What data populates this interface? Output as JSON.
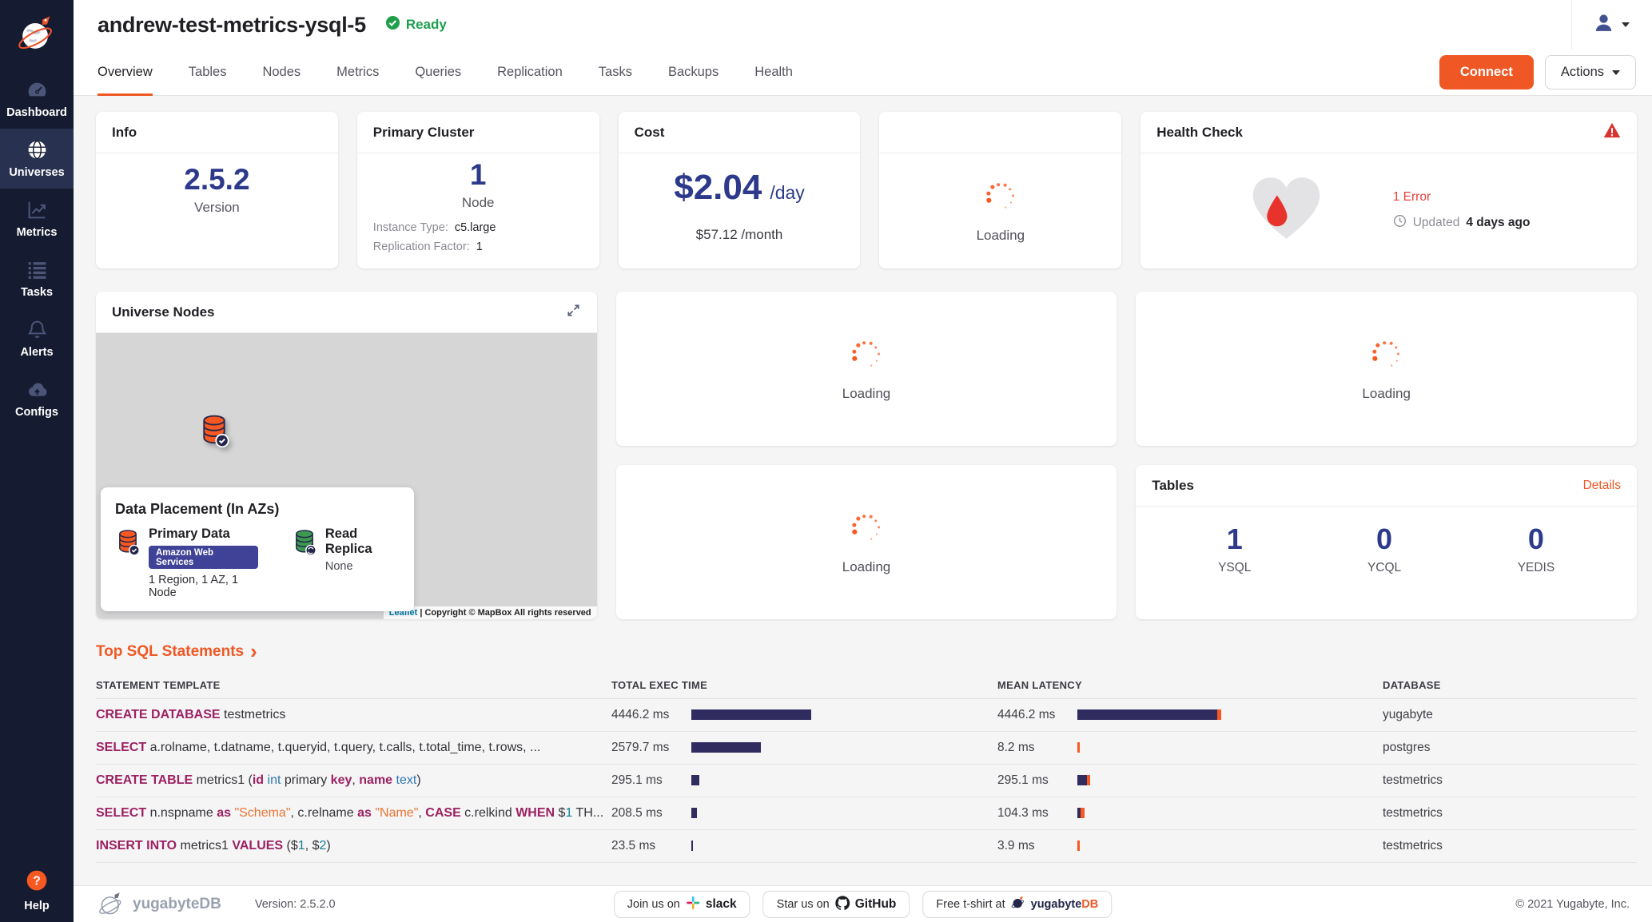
{
  "colors": {
    "accent_orange": "#ef5824",
    "navy_number": "#2d3a8c",
    "bar_navy": "#302c60",
    "bar_orange": "#f75821",
    "status_green": "#1f9e4e",
    "error_red": "#e4423c",
    "keyword_maroon": "#9c2162",
    "type_blue": "#2e77ae",
    "string_orange": "#ea7432",
    "number_teal": "#118091"
  },
  "sidebar": {
    "items": [
      {
        "label": "Dashboard",
        "icon": "gauge-icon",
        "active": false
      },
      {
        "label": "Universes",
        "icon": "globe-icon",
        "active": true
      },
      {
        "label": "Metrics",
        "icon": "chart-icon",
        "active": false
      },
      {
        "label": "Tasks",
        "icon": "list-icon",
        "active": false
      },
      {
        "label": "Alerts",
        "icon": "bell-icon",
        "active": false
      },
      {
        "label": "Configs",
        "icon": "cloud-icon",
        "active": false
      }
    ],
    "help_label": "Help"
  },
  "header": {
    "title": "andrew-test-metrics-ysql-5",
    "status": "Ready"
  },
  "tabs": [
    {
      "label": "Overview",
      "active": true
    },
    {
      "label": "Tables",
      "active": false
    },
    {
      "label": "Nodes",
      "active": false
    },
    {
      "label": "Metrics",
      "active": false
    },
    {
      "label": "Queries",
      "active": false
    },
    {
      "label": "Replication",
      "active": false
    },
    {
      "label": "Tasks",
      "active": false
    },
    {
      "label": "Backups",
      "active": false
    },
    {
      "label": "Health",
      "active": false
    }
  ],
  "toolbar": {
    "connect": "Connect",
    "actions": "Actions"
  },
  "cards": {
    "loading_label": "Loading",
    "info": {
      "title": "Info",
      "value": "2.5.2",
      "label": "Version"
    },
    "primary_cluster": {
      "title": "Primary Cluster",
      "value": "1",
      "label": "Node",
      "instance_type_label": "Instance Type:",
      "instance_type": "c5.large",
      "replication_factor_label": "Replication Factor:",
      "replication_factor": "1"
    },
    "cost": {
      "title": "Cost",
      "daily": "$2.04",
      "daily_suffix": "/day",
      "monthly": "$57.12 /month"
    },
    "health": {
      "title": "Health Check",
      "error_text": "1 Error",
      "updated_label": "Updated",
      "updated_ago": "4 days ago"
    }
  },
  "universe_nodes": {
    "title": "Universe Nodes",
    "placement": {
      "title": "Data Placement (In AZs)",
      "primary": {
        "label": "Primary Data",
        "provider": "Amazon Web Services",
        "detail": "1 Region, 1 AZ, 1 Node"
      },
      "replica": {
        "label": "Read Replica",
        "value": "None"
      }
    },
    "map": {
      "attribution_leaflet": "Leaflet",
      "attribution_sep": "|",
      "attribution_text": "Copyright © MapBox All rights reserved"
    }
  },
  "tables_card": {
    "title": "Tables",
    "details_label": "Details",
    "stats": [
      {
        "value": "1",
        "label": "YSQL"
      },
      {
        "value": "0",
        "label": "YCQL"
      },
      {
        "value": "0",
        "label": "YEDIS"
      }
    ]
  },
  "sql": {
    "heading": "Top SQL Statements",
    "chevron": "›",
    "columns": {
      "statement": "STATEMENT TEMPLATE",
      "exec": "TOTAL EXEC TIME",
      "latency": "MEAN LATENCY",
      "database": "DATABASE"
    },
    "max_ms": 4446.2,
    "rows": [
      {
        "statement": [
          {
            "t": "CREATE DATABASE",
            "c": "kw"
          },
          {
            "t": " testmetrics",
            "c": "p"
          }
        ],
        "exec_time": "4446.2 ms",
        "exec_ms": 4446.2,
        "mean_latency": "4446.2 ms",
        "latency_ms": 4446.2,
        "database": "yugabyte"
      },
      {
        "statement": [
          {
            "t": "SELECT",
            "c": "kw"
          },
          {
            "t": " a.rolname, t.datname, t.queryid, t.query, t.calls, t.total_time, t.rows, ...",
            "c": "p"
          }
        ],
        "exec_time": "2579.7 ms",
        "exec_ms": 2579.7,
        "mean_latency": "8.2 ms",
        "latency_ms": 8.2,
        "database": "postgres"
      },
      {
        "statement": [
          {
            "t": "CREATE TABLE",
            "c": "kw"
          },
          {
            "t": " metrics1 (",
            "c": "p"
          },
          {
            "t": "id",
            "c": "kw"
          },
          {
            "t": " ",
            "c": "p"
          },
          {
            "t": "int",
            "c": "ty"
          },
          {
            "t": " primary ",
            "c": "p"
          },
          {
            "t": "key",
            "c": "kw"
          },
          {
            "t": ", ",
            "c": "p"
          },
          {
            "t": "name",
            "c": "kw"
          },
          {
            "t": " ",
            "c": "p"
          },
          {
            "t": "text",
            "c": "ty"
          },
          {
            "t": ")",
            "c": "p"
          }
        ],
        "exec_time": "295.1 ms",
        "exec_ms": 295.1,
        "mean_latency": "295.1 ms",
        "latency_ms": 295.1,
        "database": "testmetrics"
      },
      {
        "statement": [
          {
            "t": "SELECT",
            "c": "kw"
          },
          {
            "t": " n.nspname ",
            "c": "p"
          },
          {
            "t": "as",
            "c": "kw"
          },
          {
            "t": " ",
            "c": "p"
          },
          {
            "t": "\"Schema\"",
            "c": "str"
          },
          {
            "t": ", c.relname ",
            "c": "p"
          },
          {
            "t": "as",
            "c": "kw"
          },
          {
            "t": " ",
            "c": "p"
          },
          {
            "t": "\"Name\"",
            "c": "str"
          },
          {
            "t": ", ",
            "c": "p"
          },
          {
            "t": "CASE",
            "c": "kw"
          },
          {
            "t": " c.relkind ",
            "c": "p"
          },
          {
            "t": "WHEN",
            "c": "kw"
          },
          {
            "t": " $",
            "c": "p"
          },
          {
            "t": "1",
            "c": "num"
          },
          {
            "t": " TH...",
            "c": "p"
          }
        ],
        "exec_time": "208.5 ms",
        "exec_ms": 208.5,
        "mean_latency": "104.3 ms",
        "latency_ms": 104.3,
        "database": "testmetrics"
      },
      {
        "statement": [
          {
            "t": "INSERT INTO",
            "c": "kw"
          },
          {
            "t": " metrics1 ",
            "c": "p"
          },
          {
            "t": "VALUES",
            "c": "kw"
          },
          {
            "t": " ($",
            "c": "p"
          },
          {
            "t": "1",
            "c": "num"
          },
          {
            "t": ", $",
            "c": "p"
          },
          {
            "t": "2",
            "c": "num"
          },
          {
            "t": ")",
            "c": "p"
          }
        ],
        "exec_time": "23.5 ms",
        "exec_ms": 23.5,
        "mean_latency": "3.9 ms",
        "latency_ms": 3.9,
        "database": "testmetrics"
      }
    ]
  },
  "footer": {
    "brand": "yugabyteDB",
    "version_text": "Version: 2.5.2.0",
    "pills": {
      "slack_prefix": "Join us on",
      "slack_brand": "slack",
      "github_prefix": "Star us on",
      "github_brand": "GitHub",
      "tshirt_prefix": "Free t-shirt at",
      "tshirt_brand_a": "yugabyte",
      "tshirt_brand_b": "DB"
    },
    "copyright": "© 2021 Yugabyte, Inc."
  }
}
